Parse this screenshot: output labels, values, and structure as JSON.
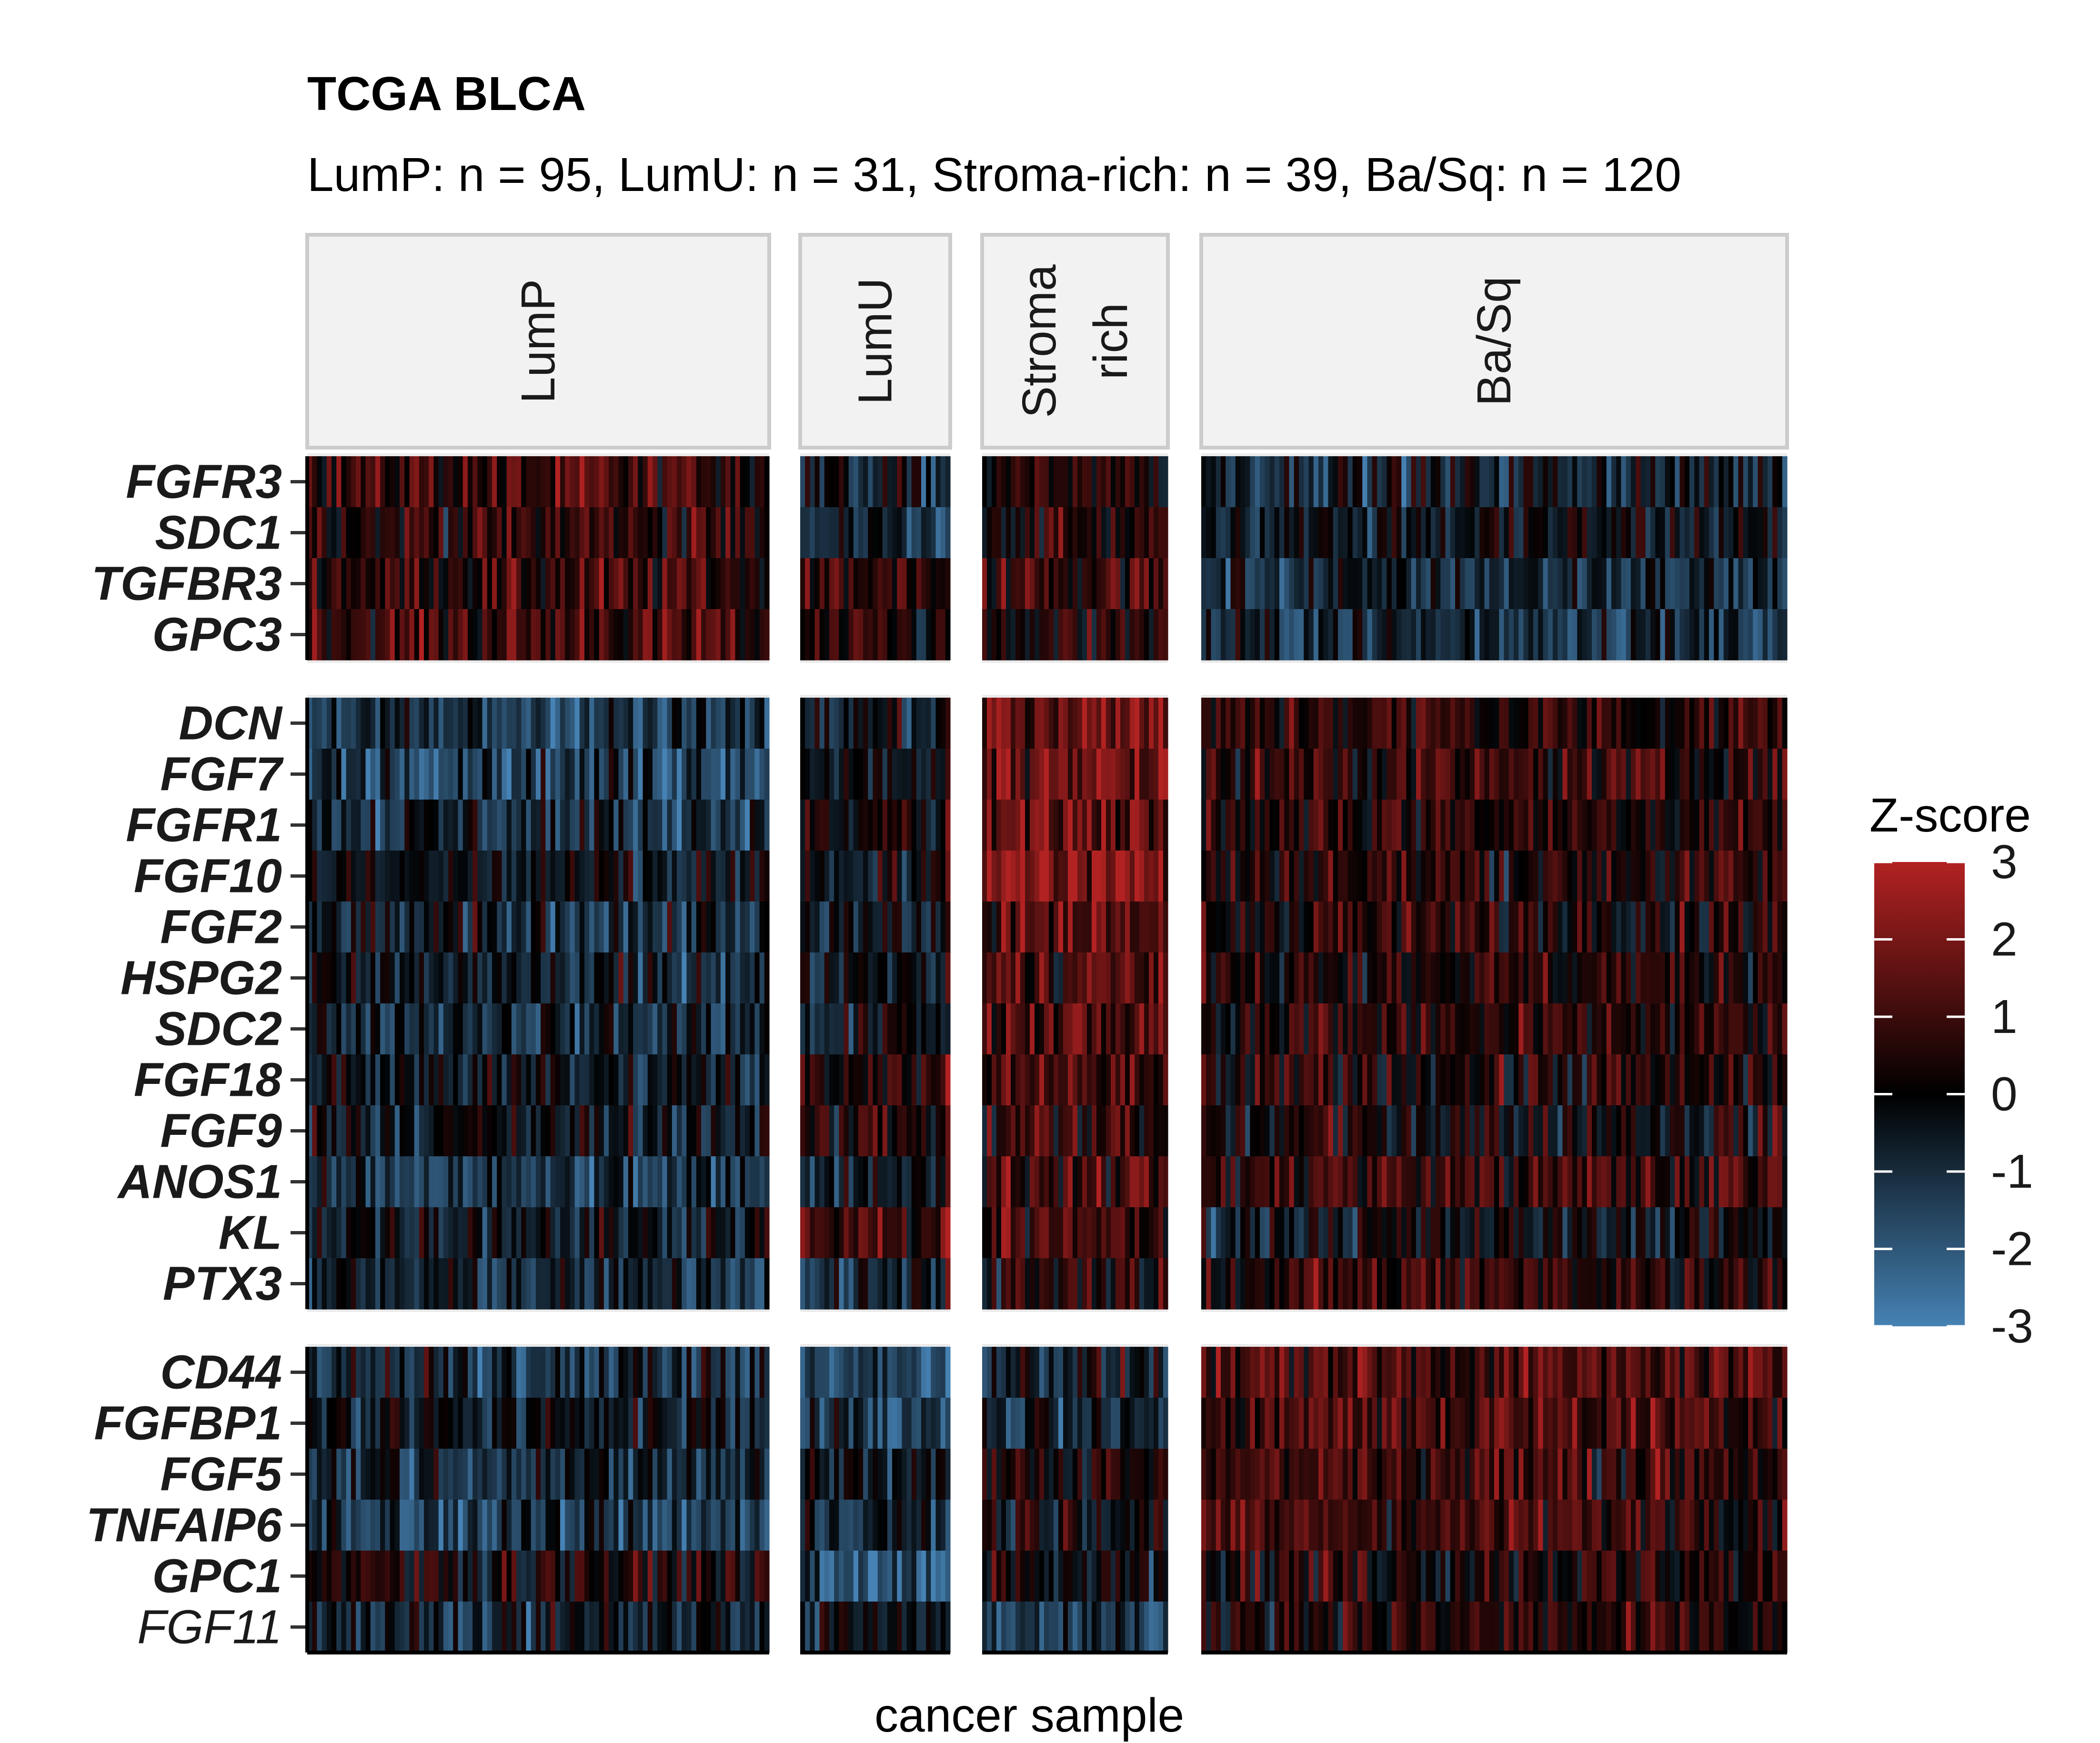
{
  "chart_data": {
    "type": "heatmap",
    "title": "TCGA BLCA",
    "subtitle": "LumP: n = 95, LumU: n = 31, Stroma-rich: n = 39, Ba/Sq: n = 120",
    "xlabel": "cancer sample",
    "legend": {
      "title": "Z-score",
      "range": [
        -3,
        3
      ],
      "ticks": [
        "3",
        "2",
        "1",
        "0",
        "-1",
        "-2",
        "-3"
      ],
      "colors": {
        "low": "#4682b4",
        "mid": "#000000",
        "high": "#b22222"
      },
      "placement": "right"
    },
    "columns": [
      {
        "label": "LumP",
        "lines": [
          "LumP"
        ],
        "n": 95
      },
      {
        "label": "LumU",
        "lines": [
          "LumU"
        ],
        "n": 31
      },
      {
        "label": "Stroma-rich",
        "lines": [
          "Stroma",
          "rich"
        ],
        "n": 39
      },
      {
        "label": "Ba/Sq",
        "lines": [
          "Ba/Sq"
        ],
        "n": 120
      }
    ],
    "row_groups": [
      {
        "genes": [
          {
            "name": "FGFR3",
            "bold": true,
            "means": [
              0.9,
              -0.6,
              0.2,
              -0.6
            ]
          },
          {
            "name": "SDC1",
            "bold": true,
            "means": [
              0.7,
              -0.9,
              0.4,
              -0.3
            ]
          },
          {
            "name": "TGFBR3",
            "bold": true,
            "means": [
              0.8,
              0.6,
              0.9,
              -0.9
            ]
          },
          {
            "name": "GPC3",
            "bold": true,
            "means": [
              1.0,
              0.3,
              0.4,
              -0.9
            ]
          }
        ]
      },
      {
        "genes": [
          {
            "name": "DCN",
            "bold": true,
            "means": [
              -1.3,
              -0.4,
              1.8,
              0.7
            ]
          },
          {
            "name": "FGF7",
            "bold": true,
            "means": [
              -1.2,
              -0.3,
              1.8,
              0.8
            ]
          },
          {
            "name": "FGFR1",
            "bold": true,
            "means": [
              -0.9,
              0.3,
              1.7,
              0.7
            ]
          },
          {
            "name": "FGF10",
            "bold": true,
            "means": [
              -0.5,
              -0.1,
              2.2,
              0.6
            ]
          },
          {
            "name": "FGF2",
            "bold": true,
            "means": [
              -0.8,
              -0.2,
              1.4,
              0.6
            ]
          },
          {
            "name": "HSPG2",
            "bold": true,
            "means": [
              -0.7,
              -0.3,
              1.3,
              0.6
            ]
          },
          {
            "name": "SDC2",
            "bold": true,
            "means": [
              -0.8,
              -0.3,
              1.3,
              0.5
            ]
          },
          {
            "name": "FGF18",
            "bold": true,
            "means": [
              -0.5,
              0.6,
              1.1,
              0.4
            ]
          },
          {
            "name": "FGF9",
            "bold": true,
            "means": [
              -0.4,
              0.5,
              1.0,
              0.2
            ]
          },
          {
            "name": "ANOS1",
            "bold": true,
            "means": [
              -1.3,
              -0.4,
              0.9,
              0.9
            ]
          },
          {
            "name": "KL",
            "bold": true,
            "means": [
              -0.3,
              1.1,
              1.0,
              -0.2
            ]
          },
          {
            "name": "PTX3",
            "bold": true,
            "means": [
              -0.9,
              -0.7,
              0.6,
              0.8
            ]
          }
        ]
      },
      {
        "genes": [
          {
            "name": "CD44",
            "bold": true,
            "means": [
              -0.9,
              -1.7,
              -0.3,
              1.2
            ]
          },
          {
            "name": "FGFBP1",
            "bold": true,
            "means": [
              -0.4,
              -1.4,
              -1.0,
              1.3
            ]
          },
          {
            "name": "FGF5",
            "bold": true,
            "means": [
              -0.8,
              -0.5,
              0.5,
              1.0
            ]
          },
          {
            "name": "TNFAIP6",
            "bold": true,
            "means": [
              -1.3,
              -0.7,
              0.3,
              1.0
            ]
          },
          {
            "name": "GPC1",
            "bold": true,
            "means": [
              0.3,
              -2.0,
              -0.1,
              0.5
            ]
          },
          {
            "name": "FGF11",
            "bold": false,
            "means": [
              -0.7,
              -0.5,
              -1.1,
              0.5
            ]
          }
        ]
      }
    ]
  }
}
